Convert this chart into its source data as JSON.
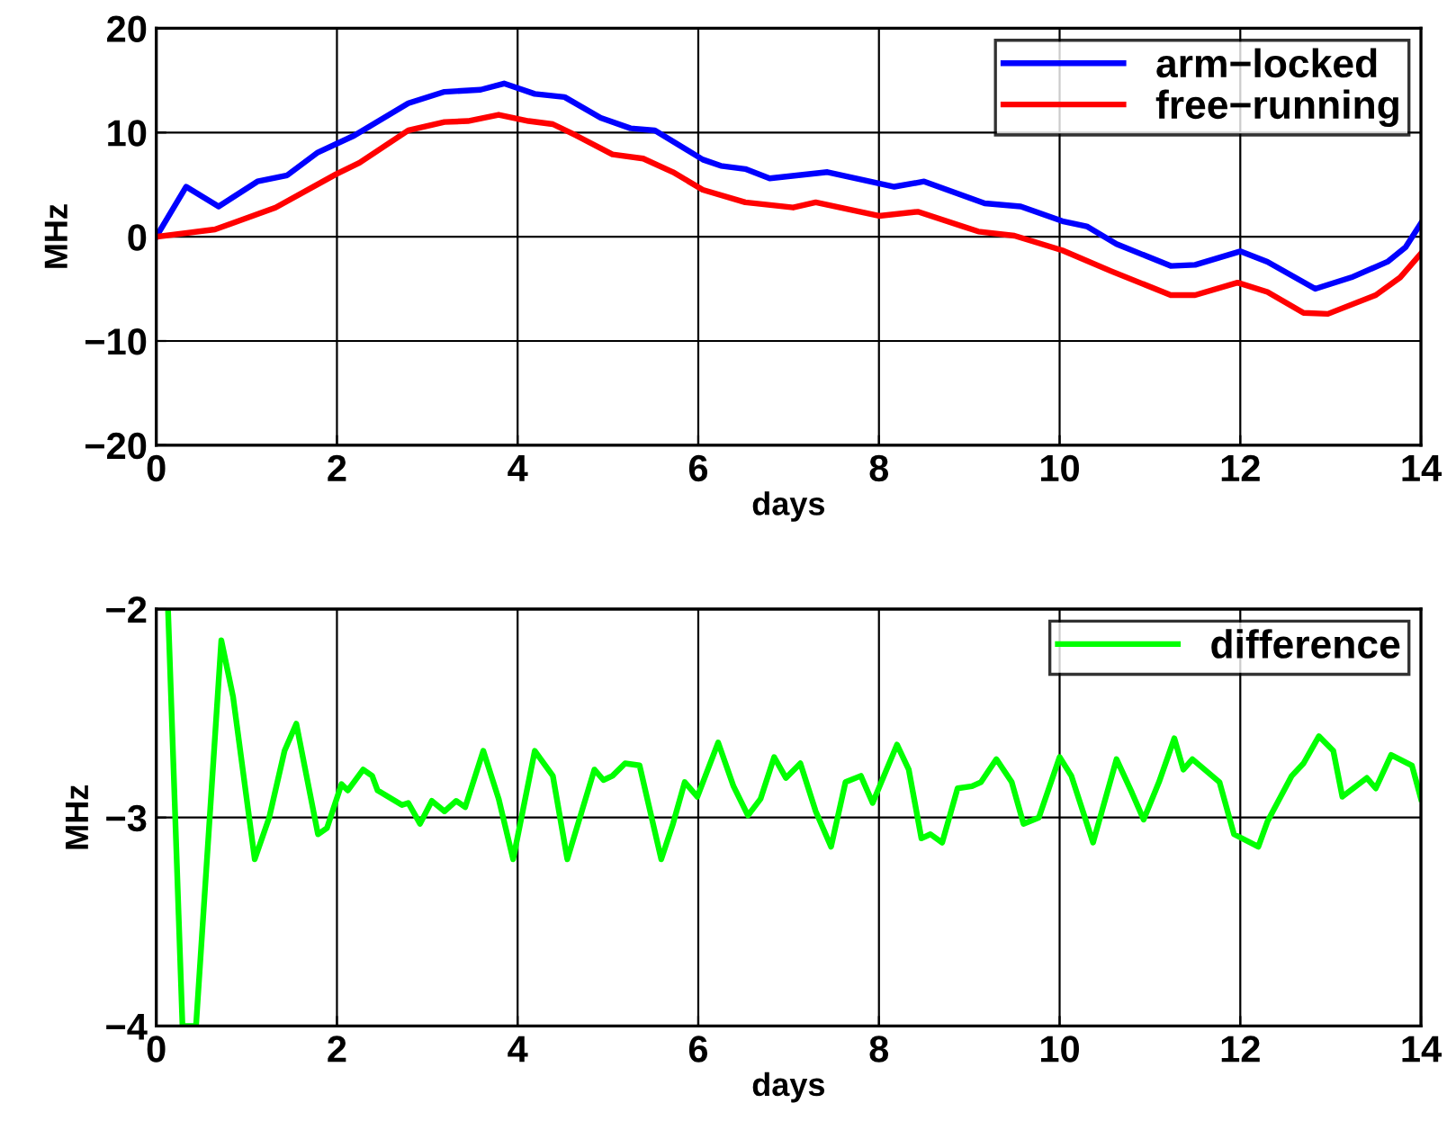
{
  "chart_data": [
    {
      "type": "line",
      "xlabel": "days",
      "ylabel": "MHz",
      "xlim": [
        0,
        14
      ],
      "ylim": [
        -20,
        20
      ],
      "xticks": [
        0,
        2,
        4,
        6,
        8,
        10,
        12,
        14
      ],
      "yticks": [
        -20,
        -10,
        0,
        10,
        20
      ],
      "grid": true,
      "legend": "top right",
      "series": [
        {
          "name": "arm−locked",
          "color": "#0000ff",
          "x": [
            0,
            0.33,
            0.69,
            1.12,
            1.45,
            1.79,
            2.19,
            2.79,
            3.19,
            3.59,
            3.85,
            4.19,
            4.52,
            4.92,
            5.25,
            5.52,
            6.05,
            6.25,
            6.52,
            6.79,
            7.43,
            8.17,
            8.5,
            9.17,
            9.57,
            10.03,
            10.3,
            10.63,
            11.23,
            11.5,
            12,
            12.3,
            12.83,
            13.23,
            13.63,
            13.83,
            14
          ],
          "values": [
            0,
            4.8,
            2.9,
            5.3,
            5.9,
            8.1,
            9.7,
            12.8,
            13.9,
            14.1,
            14.7,
            13.7,
            13.4,
            11.4,
            10.4,
            10.2,
            7.4,
            6.8,
            6.5,
            5.6,
            6.2,
            4.8,
            5.3,
            3.2,
            2.9,
            1.5,
            1.0,
            -0.7,
            -2.8,
            -2.7,
            -1.4,
            -2.4,
            -5.0,
            -3.9,
            -2.4,
            -1.0,
            1.3
          ]
        },
        {
          "name": "free−running",
          "color": "#ff0000",
          "x": [
            0,
            0.65,
            1.32,
            1.99,
            2.25,
            2.79,
            3.19,
            3.45,
            3.79,
            4.12,
            4.39,
            4.65,
            5.05,
            5.39,
            5.72,
            6.05,
            6.52,
            7.05,
            7.3,
            8,
            8.43,
            9.1,
            9.5,
            10.03,
            10.57,
            11.23,
            11.5,
            11.97,
            12.3,
            12.7,
            12.97,
            13.5,
            13.77,
            14
          ],
          "values": [
            0,
            0.7,
            2.8,
            6.0,
            7.1,
            10.2,
            11.0,
            11.1,
            11.7,
            11.1,
            10.8,
            9.7,
            7.9,
            7.5,
            6.2,
            4.5,
            3.3,
            2.8,
            3.3,
            2.0,
            2.4,
            0.5,
            0.1,
            -1.3,
            -3.3,
            -5.6,
            -5.6,
            -4.4,
            -5.3,
            -7.3,
            -7.4,
            -5.6,
            -3.9,
            -1.6
          ]
        }
      ]
    },
    {
      "type": "line",
      "xlabel": "days",
      "ylabel": "MHz",
      "xlim": [
        0,
        14
      ],
      "ylim": [
        -4,
        -2
      ],
      "xticks": [
        0,
        2,
        4,
        6,
        8,
        10,
        12,
        14
      ],
      "yticks": [
        -4,
        -3,
        -2
      ],
      "grid": true,
      "legend": "top right",
      "series": [
        {
          "name": "difference",
          "color": "#00ff00",
          "x": [
            0.13,
            0.29,
            0.44,
            0.72,
            0.85,
            1.09,
            1.25,
            1.42,
            1.55,
            1.79,
            1.89,
            2.05,
            2.12,
            2.29,
            2.39,
            2.45,
            2.72,
            2.79,
            2.92,
            3.05,
            3.19,
            3.32,
            3.42,
            3.62,
            3.79,
            3.95,
            4.19,
            4.39,
            4.55,
            4.85,
            4.95,
            5.05,
            5.19,
            5.35,
            5.59,
            5.72,
            5.85,
            5.99,
            6.22,
            6.39,
            6.55,
            6.69,
            6.84,
            6.97,
            7.13,
            7.3,
            7.47,
            7.63,
            7.8,
            7.93,
            8.2,
            8.33,
            8.47,
            8.57,
            8.7,
            8.87,
            9.03,
            9.13,
            9.3,
            9.47,
            9.6,
            9.77,
            10.0,
            10.13,
            10.37,
            10.63,
            10.8,
            10.93,
            11.1,
            11.27,
            11.37,
            11.47,
            11.77,
            11.93,
            12.2,
            12.3,
            12.57,
            12.7,
            12.87,
            13.03,
            13.13,
            13.4,
            13.5,
            13.67,
            13.9,
            14
          ],
          "values": [
            -2.0,
            -4.0,
            -4.0,
            -2.15,
            -2.42,
            -3.2,
            -3.0,
            -2.68,
            -2.55,
            -3.08,
            -3.05,
            -2.84,
            -2.87,
            -2.77,
            -2.8,
            -2.87,
            -2.94,
            -2.93,
            -3.03,
            -2.92,
            -2.97,
            -2.92,
            -2.95,
            -2.68,
            -2.91,
            -3.2,
            -2.68,
            -2.8,
            -3.2,
            -2.77,
            -2.82,
            -2.8,
            -2.74,
            -2.75,
            -3.2,
            -3.03,
            -2.83,
            -2.9,
            -2.64,
            -2.85,
            -2.99,
            -2.91,
            -2.71,
            -2.81,
            -2.74,
            -2.97,
            -3.14,
            -2.83,
            -2.8,
            -2.93,
            -2.65,
            -2.77,
            -3.1,
            -3.08,
            -3.12,
            -2.86,
            -2.85,
            -2.83,
            -2.72,
            -2.83,
            -3.03,
            -3.0,
            -2.71,
            -2.8,
            -3.12,
            -2.72,
            -2.88,
            -3.01,
            -2.83,
            -2.62,
            -2.77,
            -2.72,
            -2.83,
            -3.08,
            -3.14,
            -3.02,
            -2.8,
            -2.74,
            -2.61,
            -2.68,
            -2.9,
            -2.81,
            -2.86,
            -2.7,
            -2.75,
            -2.91
          ]
        }
      ]
    }
  ]
}
